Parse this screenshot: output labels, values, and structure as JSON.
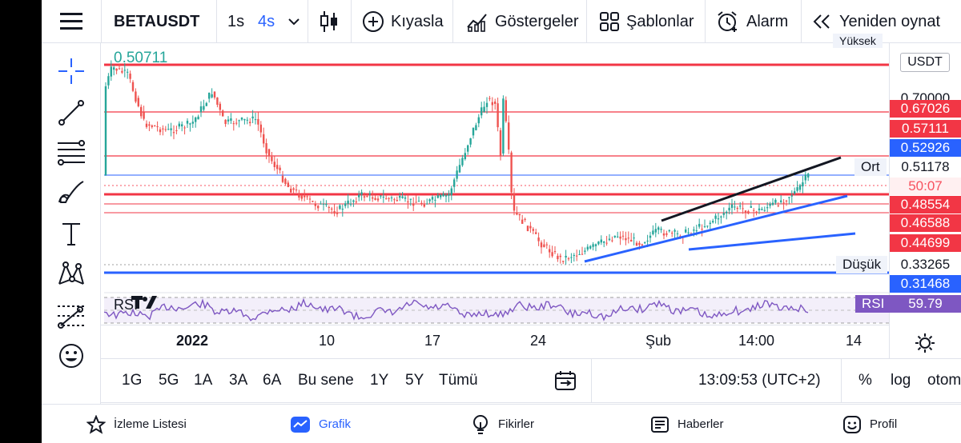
{
  "toolbar": {
    "symbol": "BETAUSDT",
    "interval_a": "1s",
    "interval_b": "4s",
    "compare": "Kıyasla",
    "indicators": "Göstergeler",
    "templates": "Şablonlar",
    "alarm": "Alarm",
    "replay": "Yeniden oynat"
  },
  "chart": {
    "high_label": "0.50711",
    "currency": "USDT",
    "ort_tag": "Ort",
    "dusuk_tag": "Düşük",
    "yuksek_tag": "Yüksek",
    "price_labels": [
      {
        "text": "0.70000",
        "color": "#ffffff"
      },
      {
        "text": "0.67026",
        "color": "#f23645"
      },
      {
        "text": "0.57111",
        "color": "#f23645"
      },
      {
        "text": "0.52926",
        "color": "#2962ff"
      },
      {
        "text": "0.51178",
        "color": "#ffffff"
      },
      {
        "text": "50:07",
        "color": "#f7525f"
      },
      {
        "text": "0.48554",
        "color": "#f23645"
      },
      {
        "text": "0.46588",
        "color": "#f23645"
      },
      {
        "text": "0.44699",
        "color": "#f23645"
      },
      {
        "text": "0.33265",
        "color": "#ffffff"
      },
      {
        "text": "0.31468",
        "color": "#2962ff"
      }
    ],
    "rsi_label": "RSI",
    "rsi_value": "59.79",
    "rsi_pane_label": "RSI",
    "time_labels": [
      "2022",
      "10",
      "17",
      "24",
      "Şub",
      "14:00",
      "14"
    ]
  },
  "ranges": [
    "1G",
    "5G",
    "1A",
    "3A",
    "6A",
    "Bu sene",
    "1Y",
    "5Y",
    "Tümü"
  ],
  "clock": "13:09:53 (UTC+2)",
  "scale_options": [
    "%",
    "log",
    "otomatik"
  ],
  "bottom_nav": [
    "İzleme Listesi",
    "Grafik",
    "Fikirler",
    "Haberler",
    "Profil"
  ],
  "colors": {
    "up": "#26a69a",
    "down": "#ef5350",
    "accent": "#2962ff",
    "red_line": "#f23645"
  }
}
